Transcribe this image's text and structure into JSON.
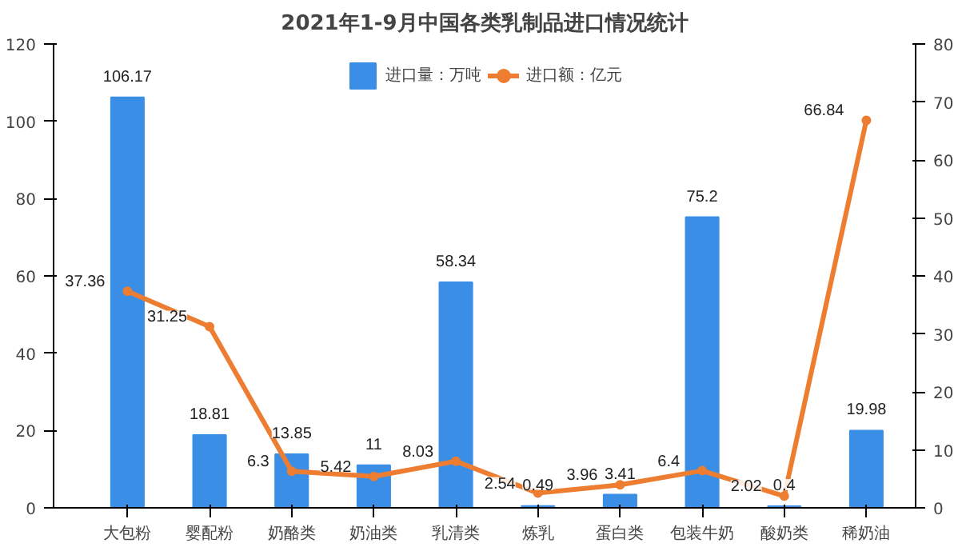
{
  "chart_data": {
    "type": "bar",
    "title": "2021年1-9月中国各类乳制品进口情况统计",
    "categories": [
      "大包粉",
      "婴配粉",
      "奶酪类",
      "奶油类",
      "乳清类",
      "炼乳",
      "蛋白类",
      "包装牛奶",
      "酸奶类",
      "稀奶油"
    ],
    "series": [
      {
        "name": "进口量：万吨",
        "color": "#3a8ee6",
        "values": [
          106.17,
          18.81,
          13.85,
          11,
          58.34,
          0.49,
          3.41,
          75.2,
          0.4,
          19.98
        ]
      },
      {
        "name": "进口额：亿元",
        "type": "line",
        "axis": "y2",
        "color": "#ed7d31",
        "values": [
          37.36,
          31.25,
          6.3,
          5.42,
          8.03,
          2.54,
          3.96,
          6.4,
          2.02,
          66.84
        ]
      }
    ],
    "ylim": [
      0,
      120
    ],
    "yticks": [
      0,
      20,
      40,
      60,
      80,
      100,
      120
    ],
    "y2lim": [
      0,
      80
    ],
    "y2ticks": [
      0,
      10,
      20,
      30,
      40,
      50,
      60,
      70,
      80
    ],
    "data_labels": true,
    "legend": "top",
    "grid": false,
    "marker": "circle",
    "line_style": "solid"
  }
}
